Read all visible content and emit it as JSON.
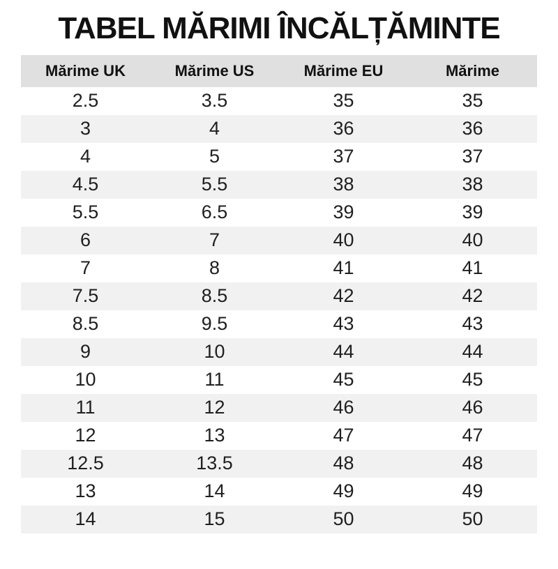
{
  "title": "TABEL MĂRIMI ÎNCĂLȚĂMINTE",
  "table": {
    "headers": [
      "Mărime UK",
      "Mărime US",
      "Mărime EU",
      "Mărime"
    ],
    "rows": [
      [
        "2.5",
        "3.5",
        "35",
        "35"
      ],
      [
        "3",
        "4",
        "36",
        "36"
      ],
      [
        "4",
        "5",
        "37",
        "37"
      ],
      [
        "4.5",
        "5.5",
        "38",
        "38"
      ],
      [
        "5.5",
        "6.5",
        "39",
        "39"
      ],
      [
        "6",
        "7",
        "40",
        "40"
      ],
      [
        "7",
        "8",
        "41",
        "41"
      ],
      [
        "7.5",
        "8.5",
        "42",
        "42"
      ],
      [
        "8.5",
        "9.5",
        "43",
        "43"
      ],
      [
        "9",
        "10",
        "44",
        "44"
      ],
      [
        "10",
        "11",
        "45",
        "45"
      ],
      [
        "11",
        "12",
        "46",
        "46"
      ],
      [
        "12",
        "13",
        "47",
        "47"
      ],
      [
        "12.5",
        "13.5",
        "48",
        "48"
      ],
      [
        "13",
        "14",
        "49",
        "49"
      ],
      [
        "14",
        "15",
        "50",
        "50"
      ]
    ]
  },
  "colors": {
    "header_bg": "#e0e0e0",
    "stripe_bg": "#f1f1f1",
    "text": "#1f1f1f",
    "title": "#111111",
    "page_bg": "#ffffff"
  }
}
